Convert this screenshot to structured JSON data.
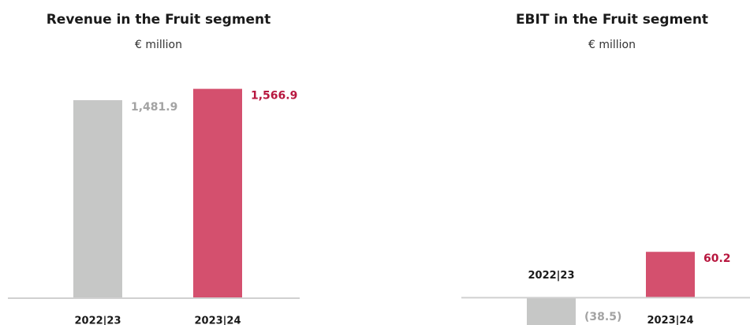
{
  "chart_data": [
    {
      "type": "bar",
      "title": "Revenue in the Fruit segment",
      "subtitle": "€ million",
      "categories": [
        "2022|23",
        "2023|24"
      ],
      "values": [
        1481.9,
        1566.9
      ],
      "value_labels": [
        "1,481.9",
        "1,566.9"
      ],
      "colors": [
        "#c6c7c6",
        "#d4506e"
      ],
      "ylim": [
        0,
        1600
      ]
    },
    {
      "type": "bar",
      "title": "EBIT in the Fruit segment",
      "subtitle": "€ million",
      "categories": [
        "2022|23",
        "2023|24"
      ],
      "values": [
        -38.5,
        60.2
      ],
      "value_labels": [
        "(38.5)",
        "60.2"
      ],
      "colors": [
        "#c6c7c6",
        "#d4506e"
      ],
      "ylim": [
        -40,
        280
      ]
    }
  ]
}
